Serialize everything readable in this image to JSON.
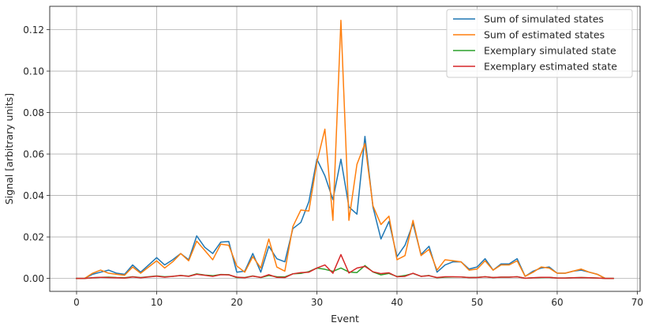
{
  "chart_data": {
    "type": "line",
    "title": "",
    "xlabel": "Event",
    "ylabel": "Signal [arbitrary units]",
    "xlim": [
      -3.35,
      70.35
    ],
    "ylim": [
      -0.00625,
      0.13125
    ],
    "xticks": [
      0,
      10,
      20,
      30,
      40,
      50,
      60,
      70
    ],
    "yticks": [
      0.0,
      0.02,
      0.04,
      0.06,
      0.08,
      0.1,
      0.12
    ],
    "ytick_labels": [
      "0.00",
      "0.02",
      "0.04",
      "0.06",
      "0.08",
      "0.10",
      "0.12"
    ],
    "grid": true,
    "legend_position": "top-right",
    "x": [
      0,
      1,
      2,
      3,
      4,
      5,
      6,
      7,
      8,
      9,
      10,
      11,
      12,
      13,
      14,
      15,
      16,
      17,
      18,
      19,
      20,
      21,
      22,
      23,
      24,
      25,
      26,
      27,
      28,
      29,
      30,
      31,
      32,
      33,
      34,
      35,
      36,
      37,
      38,
      39,
      40,
      41,
      42,
      43,
      44,
      45,
      46,
      47,
      48,
      49,
      50,
      51,
      52,
      53,
      54,
      55,
      56,
      57,
      58,
      59,
      60,
      61,
      62,
      63,
      64,
      65,
      66,
      67
    ],
    "series": [
      {
        "name": "Sum of simulated states",
        "color": "#1f77b4",
        "values": [
          0.0,
          0.0,
          0.002,
          0.003,
          0.004,
          0.0025,
          0.002,
          0.0065,
          0.003,
          0.0065,
          0.01,
          0.0065,
          0.009,
          0.012,
          0.009,
          0.0205,
          0.015,
          0.012,
          0.0175,
          0.0178,
          0.003,
          0.0035,
          0.012,
          0.003,
          0.0155,
          0.0095,
          0.008,
          0.024,
          0.027,
          0.037,
          0.0575,
          0.0495,
          0.038,
          0.0575,
          0.0345,
          0.031,
          0.0685,
          0.0345,
          0.019,
          0.0275,
          0.0105,
          0.016,
          0.0265,
          0.0115,
          0.0155,
          0.003,
          0.0065,
          0.008,
          0.008,
          0.0045,
          0.0055,
          0.0095,
          0.004,
          0.007,
          0.007,
          0.0095,
          0.001,
          0.0035,
          0.005,
          0.0055,
          0.0025,
          0.0025,
          0.0035,
          0.004,
          0.003,
          0.002,
          0.0,
          0.0
        ]
      },
      {
        "name": "Sum of estimated states",
        "color": "#ff7f0e",
        "values": [
          0.0,
          0.0,
          0.0025,
          0.004,
          0.0025,
          0.002,
          0.0015,
          0.0055,
          0.0025,
          0.0055,
          0.0085,
          0.005,
          0.008,
          0.012,
          0.0085,
          0.018,
          0.0135,
          0.009,
          0.0165,
          0.016,
          0.006,
          0.003,
          0.0105,
          0.005,
          0.019,
          0.0055,
          0.0035,
          0.025,
          0.033,
          0.0325,
          0.056,
          0.072,
          0.028,
          0.1245,
          0.028,
          0.055,
          0.065,
          0.035,
          0.026,
          0.03,
          0.009,
          0.011,
          0.028,
          0.011,
          0.014,
          0.004,
          0.009,
          0.0085,
          0.008,
          0.004,
          0.0045,
          0.0085,
          0.004,
          0.0065,
          0.0065,
          0.0085,
          0.001,
          0.003,
          0.0055,
          0.005,
          0.0025,
          0.0025,
          0.0035,
          0.0045,
          0.003,
          0.002,
          0.0,
          0.0
        ]
      },
      {
        "name": "Exemplary simulated state",
        "color": "#2ca02c",
        "values": [
          0.0,
          0.0,
          0.0003,
          0.0005,
          0.0006,
          0.0004,
          0.0003,
          0.0008,
          0.0004,
          0.0008,
          0.0012,
          0.0008,
          0.001,
          0.0014,
          0.0011,
          0.0022,
          0.0016,
          0.0013,
          0.0019,
          0.0018,
          0.0004,
          0.0004,
          0.0012,
          0.0004,
          0.0014,
          0.0008,
          0.0007,
          0.0022,
          0.0024,
          0.0033,
          0.005,
          0.0044,
          0.0034,
          0.005,
          0.0031,
          0.0028,
          0.0062,
          0.0031,
          0.0017,
          0.0024,
          0.0009,
          0.0014,
          0.0024,
          0.001,
          0.0014,
          0.0003,
          0.0006,
          0.0007,
          0.0007,
          0.0004,
          0.0005,
          0.0008,
          0.0004,
          0.0006,
          0.0006,
          0.0008,
          0.0001,
          0.0003,
          0.0004,
          0.0005,
          0.0002,
          0.0002,
          0.0003,
          0.0004,
          0.0003,
          0.0002,
          0.0,
          0.0
        ]
      },
      {
        "name": "Exemplary estimated state",
        "color": "#d62728",
        "values": [
          0.0,
          0.0,
          0.0003,
          0.0005,
          0.0004,
          0.0003,
          0.0002,
          0.0007,
          0.0003,
          0.0007,
          0.0011,
          0.0006,
          0.001,
          0.0014,
          0.001,
          0.002,
          0.0015,
          0.001,
          0.0018,
          0.0017,
          0.0006,
          0.0003,
          0.0011,
          0.0005,
          0.0018,
          0.0005,
          0.0004,
          0.0022,
          0.0028,
          0.003,
          0.005,
          0.0065,
          0.0025,
          0.0115,
          0.0026,
          0.005,
          0.0058,
          0.0032,
          0.0023,
          0.0027,
          0.0008,
          0.001,
          0.0025,
          0.001,
          0.0013,
          0.0004,
          0.0008,
          0.0008,
          0.0007,
          0.0004,
          0.0004,
          0.0008,
          0.0004,
          0.0006,
          0.0006,
          0.0008,
          0.0001,
          0.0003,
          0.0005,
          0.0005,
          0.0002,
          0.0002,
          0.0003,
          0.0004,
          0.0003,
          0.0002,
          0.0,
          0.0
        ]
      }
    ]
  }
}
